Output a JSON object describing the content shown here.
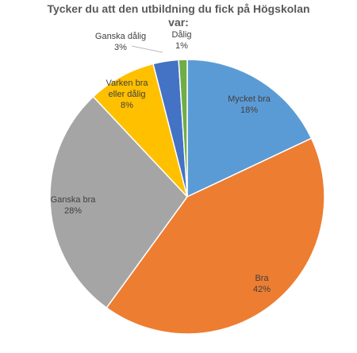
{
  "chart_data": {
    "type": "pie",
    "title_lines": [
      "Tycker du att den utbildning du fick på Högskolan",
      "var:"
    ],
    "slices": [
      {
        "label": "Mycket bra",
        "value": 18,
        "percent_label": "18%",
        "color": "#5B9BD5"
      },
      {
        "label": "Bra",
        "value": 42,
        "percent_label": "42%",
        "color": "#ED7D31"
      },
      {
        "label": "Ganska bra",
        "value": 28,
        "percent_label": "28%",
        "color": "#A5A5A5"
      },
      {
        "label": "Varken bra eller dålig",
        "value": 8,
        "percent_label": "8%",
        "color": "#FFC000"
      },
      {
        "label": "Ganska dålig",
        "value": 3,
        "percent_label": "3%",
        "color": "#4472C4"
      },
      {
        "label": "Dålig",
        "value": 1,
        "percent_label": "1%",
        "color": "#70AD47"
      }
    ],
    "start_angle_deg": 0,
    "direction": "clockwise"
  }
}
